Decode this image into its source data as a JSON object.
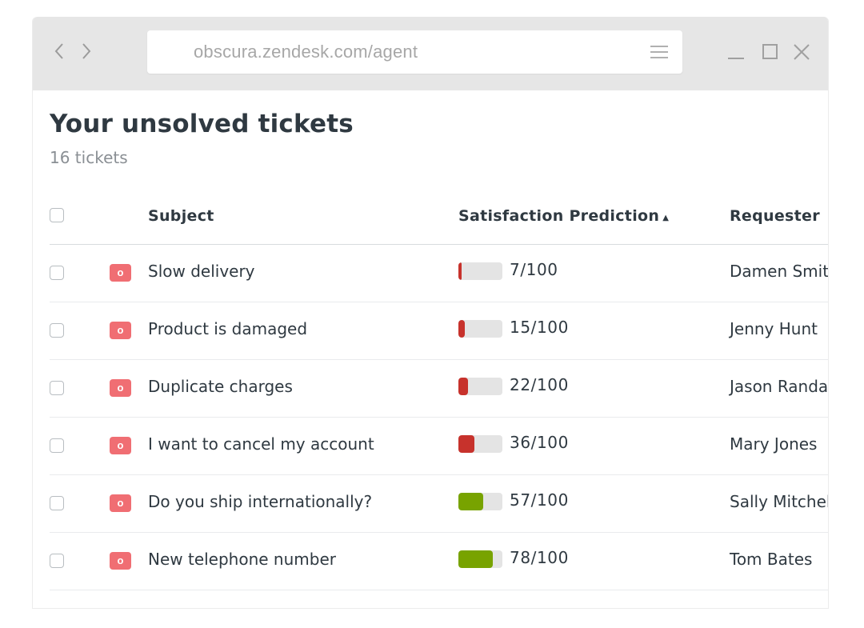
{
  "browser": {
    "url": "obscura.zendesk.com/agent",
    "back_icon": "chevron-left-icon",
    "forward_icon": "chevron-right-icon",
    "menu_icon": "hamburger-menu-icon",
    "window_controls": [
      "minimize-icon",
      "maximize-icon",
      "close-icon"
    ]
  },
  "page": {
    "title": "Your unsolved tickets",
    "count": "16 tickets"
  },
  "table": {
    "columns": {
      "subject": "Subject",
      "satisfaction": "Satisfaction Prediction",
      "requester": "Requester"
    },
    "sort_indicator": "▲",
    "rows": [
      {
        "status": "o",
        "subject": "Slow delivery",
        "score": 7,
        "score_label": "7/100",
        "requester": "Damen Smith"
      },
      {
        "status": "o",
        "subject": "Product is damaged",
        "score": 15,
        "score_label": "15/100",
        "requester": "Jenny Hunt"
      },
      {
        "status": "o",
        "subject": "Duplicate charges",
        "score": 22,
        "score_label": "22/100",
        "requester": "Jason Randall"
      },
      {
        "status": "o",
        "subject": "I want to cancel my account",
        "score": 36,
        "score_label": "36/100",
        "requester": "Mary Jones"
      },
      {
        "status": "o",
        "subject": "Do you ship internationally?",
        "score": 57,
        "score_label": "57/100",
        "requester": "Sally Mitchell"
      },
      {
        "status": "o",
        "subject": "New telephone number",
        "score": 78,
        "score_label": "78/100",
        "requester": "Tom Bates"
      }
    ]
  },
  "colors": {
    "low_score": "#c7322c",
    "high_score": "#78a300",
    "status_badge": "#f06e73",
    "bar_track": "#e4e4e4"
  }
}
